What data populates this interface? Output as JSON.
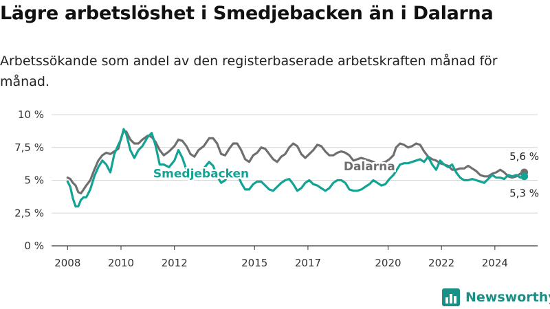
{
  "title": "Lägre arbetslöshet i Smedjebacken än i Dalarna",
  "subtitle": "Arbetssökande som andel av den registerbaserade arbetskraften månad för månad.",
  "brand": {
    "name": "Newsworthy",
    "icon": "newsworthy-logo-icon",
    "color": "#1a8f86"
  },
  "colors": {
    "smedjebacken": "#13a394",
    "dalarna": "#6f6f6f",
    "grid": "#d4d4d4",
    "axis": "#333333"
  },
  "chart_data": {
    "type": "line",
    "ylim": [
      0,
      10
    ],
    "xlim": [
      2007.4,
      2025.6
    ],
    "yticks": [
      {
        "value": 0,
        "label": "0 %"
      },
      {
        "value": 2.5,
        "label": "2,5 %"
      },
      {
        "value": 5,
        "label": "5 %"
      },
      {
        "value": 7.5,
        "label": "7,5 %"
      },
      {
        "value": 10,
        "label": "10 %"
      }
    ],
    "xticks": [
      {
        "value": 2008,
        "label": "2008"
      },
      {
        "value": 2010,
        "label": "2010"
      },
      {
        "value": 2012,
        "label": "2012"
      },
      {
        "value": 2015,
        "label": "2015"
      },
      {
        "value": 2017,
        "label": "2017"
      },
      {
        "value": 2020,
        "label": "2020"
      },
      {
        "value": 2022,
        "label": "2022"
      },
      {
        "value": 2024,
        "label": "2024"
      }
    ],
    "grid": true,
    "series": [
      {
        "name": "Dalarna",
        "end_label": "5,6 %",
        "points": [
          [
            2008.0,
            5.2
          ],
          [
            2008.1,
            5.1
          ],
          [
            2008.2,
            4.8
          ],
          [
            2008.3,
            4.6
          ],
          [
            2008.4,
            4.1
          ],
          [
            2008.5,
            4.0
          ],
          [
            2008.6,
            4.3
          ],
          [
            2008.7,
            4.6
          ],
          [
            2008.85,
            5.0
          ],
          [
            2009.0,
            5.8
          ],
          [
            2009.15,
            6.5
          ],
          [
            2009.3,
            6.9
          ],
          [
            2009.45,
            7.1
          ],
          [
            2009.6,
            7.0
          ],
          [
            2009.75,
            7.2
          ],
          [
            2009.9,
            7.4
          ],
          [
            2010.0,
            8.2
          ],
          [
            2010.1,
            8.8
          ],
          [
            2010.2,
            8.7
          ],
          [
            2010.35,
            8.1
          ],
          [
            2010.5,
            7.8
          ],
          [
            2010.65,
            7.8
          ],
          [
            2010.8,
            8.1
          ],
          [
            2011.0,
            8.4
          ],
          [
            2011.15,
            8.3
          ],
          [
            2011.3,
            7.9
          ],
          [
            2011.45,
            7.3
          ],
          [
            2011.6,
            6.9
          ],
          [
            2011.8,
            7.2
          ],
          [
            2012.0,
            7.6
          ],
          [
            2012.15,
            8.1
          ],
          [
            2012.3,
            8.0
          ],
          [
            2012.45,
            7.6
          ],
          [
            2012.6,
            7.0
          ],
          [
            2012.75,
            6.8
          ],
          [
            2012.9,
            7.3
          ],
          [
            2013.1,
            7.6
          ],
          [
            2013.3,
            8.2
          ],
          [
            2013.45,
            8.2
          ],
          [
            2013.6,
            7.8
          ],
          [
            2013.75,
            7.0
          ],
          [
            2013.9,
            6.9
          ],
          [
            2014.05,
            7.4
          ],
          [
            2014.2,
            7.8
          ],
          [
            2014.35,
            7.8
          ],
          [
            2014.5,
            7.3
          ],
          [
            2014.65,
            6.6
          ],
          [
            2014.8,
            6.4
          ],
          [
            2014.95,
            6.9
          ],
          [
            2015.1,
            7.1
          ],
          [
            2015.25,
            7.5
          ],
          [
            2015.4,
            7.4
          ],
          [
            2015.55,
            7.0
          ],
          [
            2015.7,
            6.6
          ],
          [
            2015.85,
            6.4
          ],
          [
            2016.0,
            6.8
          ],
          [
            2016.15,
            7.0
          ],
          [
            2016.3,
            7.5
          ],
          [
            2016.45,
            7.8
          ],
          [
            2016.6,
            7.6
          ],
          [
            2016.75,
            7.0
          ],
          [
            2016.9,
            6.7
          ],
          [
            2017.05,
            7.0
          ],
          [
            2017.2,
            7.3
          ],
          [
            2017.35,
            7.7
          ],
          [
            2017.5,
            7.6
          ],
          [
            2017.65,
            7.2
          ],
          [
            2017.8,
            6.9
          ],
          [
            2017.95,
            6.9
          ],
          [
            2018.1,
            7.1
          ],
          [
            2018.25,
            7.2
          ],
          [
            2018.4,
            7.1
          ],
          [
            2018.55,
            6.9
          ],
          [
            2018.7,
            6.5
          ],
          [
            2018.85,
            6.6
          ],
          [
            2019.0,
            6.7
          ],
          [
            2019.15,
            6.6
          ],
          [
            2019.3,
            6.5
          ],
          [
            2019.45,
            6.4
          ],
          [
            2019.6,
            6.2
          ],
          [
            2019.75,
            6.3
          ],
          [
            2019.9,
            6.4
          ],
          [
            2020.05,
            6.6
          ],
          [
            2020.2,
            6.9
          ],
          [
            2020.3,
            7.5
          ],
          [
            2020.45,
            7.8
          ],
          [
            2020.6,
            7.7
          ],
          [
            2020.75,
            7.5
          ],
          [
            2020.9,
            7.6
          ],
          [
            2021.05,
            7.8
          ],
          [
            2021.2,
            7.7
          ],
          [
            2021.35,
            7.2
          ],
          [
            2021.5,
            6.8
          ],
          [
            2021.65,
            6.6
          ],
          [
            2021.8,
            6.5
          ],
          [
            2021.95,
            6.3
          ],
          [
            2022.1,
            6.2
          ],
          [
            2022.25,
            6.1
          ],
          [
            2022.4,
            5.8
          ],
          [
            2022.55,
            5.8
          ],
          [
            2022.7,
            5.9
          ],
          [
            2022.85,
            5.9
          ],
          [
            2023.0,
            6.1
          ],
          [
            2023.15,
            5.9
          ],
          [
            2023.3,
            5.7
          ],
          [
            2023.45,
            5.4
          ],
          [
            2023.6,
            5.3
          ],
          [
            2023.75,
            5.3
          ],
          [
            2023.9,
            5.5
          ],
          [
            2024.05,
            5.6
          ],
          [
            2024.2,
            5.8
          ],
          [
            2024.35,
            5.6
          ],
          [
            2024.5,
            5.3
          ],
          [
            2024.65,
            5.2
          ],
          [
            2024.8,
            5.3
          ],
          [
            2024.95,
            5.5
          ],
          [
            2025.1,
            5.6
          ]
        ]
      },
      {
        "name": "Smedjebacken",
        "end_label": "5,3 %",
        "points": [
          [
            2008.0,
            4.9
          ],
          [
            2008.1,
            4.5
          ],
          [
            2008.2,
            3.6
          ],
          [
            2008.3,
            3.0
          ],
          [
            2008.4,
            3.0
          ],
          [
            2008.5,
            3.5
          ],
          [
            2008.6,
            3.7
          ],
          [
            2008.7,
            3.7
          ],
          [
            2008.85,
            4.3
          ],
          [
            2009.0,
            5.3
          ],
          [
            2009.15,
            6.0
          ],
          [
            2009.3,
            6.5
          ],
          [
            2009.45,
            6.2
          ],
          [
            2009.6,
            5.6
          ],
          [
            2009.75,
            7.0
          ],
          [
            2009.9,
            7.7
          ],
          [
            2010.0,
            8.1
          ],
          [
            2010.1,
            8.9
          ],
          [
            2010.2,
            8.5
          ],
          [
            2010.35,
            7.3
          ],
          [
            2010.5,
            6.7
          ],
          [
            2010.65,
            7.3
          ],
          [
            2010.8,
            7.6
          ],
          [
            2011.0,
            8.3
          ],
          [
            2011.15,
            8.6
          ],
          [
            2011.3,
            7.6
          ],
          [
            2011.45,
            6.2
          ],
          [
            2011.6,
            6.2
          ],
          [
            2011.8,
            6.0
          ],
          [
            2012.0,
            6.5
          ],
          [
            2012.15,
            7.3
          ],
          [
            2012.3,
            6.7
          ],
          [
            2012.45,
            5.8
          ],
          [
            2012.6,
            5.5
          ],
          [
            2012.75,
            5.3
          ],
          [
            2012.9,
            5.5
          ],
          [
            2013.1,
            5.9
          ],
          [
            2013.3,
            6.4
          ],
          [
            2013.45,
            6.1
          ],
          [
            2013.6,
            5.3
          ],
          [
            2013.75,
            4.8
          ],
          [
            2013.9,
            5.0
          ],
          [
            2014.05,
            5.6
          ],
          [
            2014.2,
            5.7
          ],
          [
            2014.35,
            5.5
          ],
          [
            2014.5,
            4.8
          ],
          [
            2014.65,
            4.3
          ],
          [
            2014.8,
            4.3
          ],
          [
            2014.95,
            4.7
          ],
          [
            2015.1,
            4.9
          ],
          [
            2015.25,
            4.9
          ],
          [
            2015.4,
            4.6
          ],
          [
            2015.55,
            4.3
          ],
          [
            2015.7,
            4.2
          ],
          [
            2015.85,
            4.5
          ],
          [
            2016.0,
            4.8
          ],
          [
            2016.15,
            5.0
          ],
          [
            2016.3,
            5.1
          ],
          [
            2016.45,
            4.7
          ],
          [
            2016.6,
            4.2
          ],
          [
            2016.75,
            4.4
          ],
          [
            2016.9,
            4.8
          ],
          [
            2017.05,
            5.0
          ],
          [
            2017.2,
            4.7
          ],
          [
            2017.35,
            4.6
          ],
          [
            2017.5,
            4.4
          ],
          [
            2017.65,
            4.2
          ],
          [
            2017.8,
            4.4
          ],
          [
            2017.95,
            4.8
          ],
          [
            2018.1,
            5.0
          ],
          [
            2018.25,
            5.0
          ],
          [
            2018.4,
            4.8
          ],
          [
            2018.55,
            4.3
          ],
          [
            2018.7,
            4.2
          ],
          [
            2018.85,
            4.2
          ],
          [
            2019.0,
            4.3
          ],
          [
            2019.15,
            4.5
          ],
          [
            2019.3,
            4.7
          ],
          [
            2019.45,
            5.0
          ],
          [
            2019.6,
            4.8
          ],
          [
            2019.75,
            4.6
          ],
          [
            2019.9,
            4.7
          ],
          [
            2020.05,
            5.1
          ],
          [
            2020.2,
            5.4
          ],
          [
            2020.3,
            5.7
          ],
          [
            2020.45,
            6.2
          ],
          [
            2020.6,
            6.3
          ],
          [
            2020.75,
            6.3
          ],
          [
            2020.9,
            6.4
          ],
          [
            2021.05,
            6.5
          ],
          [
            2021.2,
            6.6
          ],
          [
            2021.35,
            6.4
          ],
          [
            2021.5,
            6.8
          ],
          [
            2021.65,
            6.2
          ],
          [
            2021.8,
            5.8
          ],
          [
            2021.95,
            6.5
          ],
          [
            2022.1,
            6.2
          ],
          [
            2022.25,
            6.0
          ],
          [
            2022.4,
            6.2
          ],
          [
            2022.55,
            5.6
          ],
          [
            2022.7,
            5.2
          ],
          [
            2022.85,
            5.0
          ],
          [
            2023.0,
            5.0
          ],
          [
            2023.15,
            5.1
          ],
          [
            2023.3,
            5.0
          ],
          [
            2023.45,
            4.9
          ],
          [
            2023.6,
            4.8
          ],
          [
            2023.75,
            5.1
          ],
          [
            2023.9,
            5.4
          ],
          [
            2024.05,
            5.2
          ],
          [
            2024.2,
            5.2
          ],
          [
            2024.35,
            5.1
          ],
          [
            2024.5,
            5.4
          ],
          [
            2024.65,
            5.3
          ],
          [
            2024.8,
            5.4
          ],
          [
            2024.95,
            5.2
          ],
          [
            2025.1,
            5.3
          ]
        ]
      }
    ]
  }
}
